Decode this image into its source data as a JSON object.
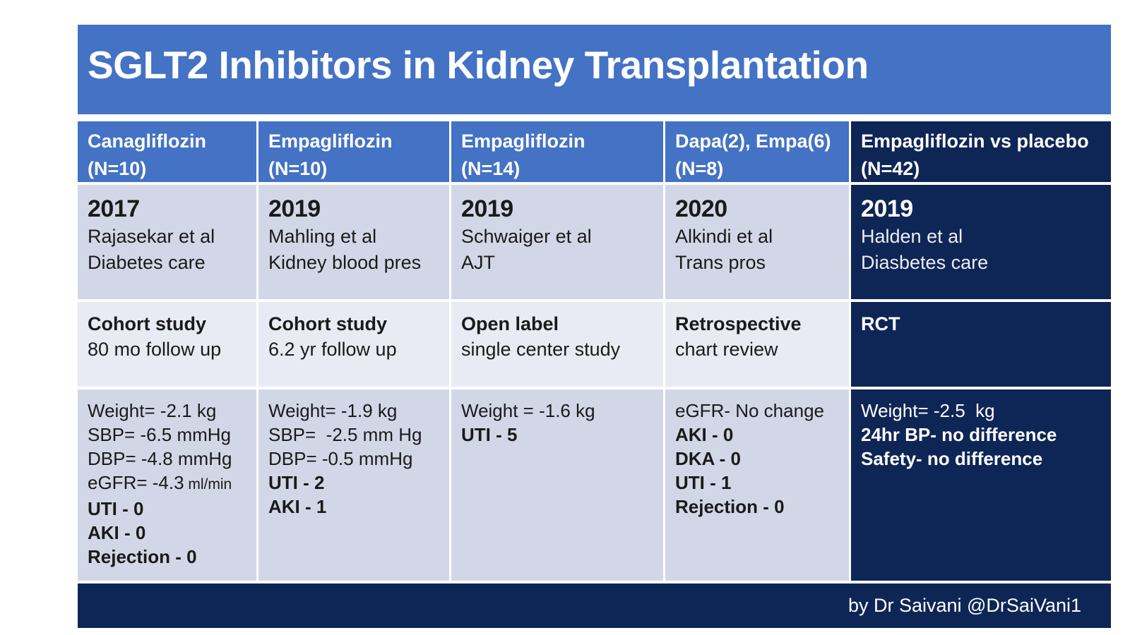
{
  "slide": {
    "title": "SGLT2 Inhibitors in Kidney Transplantation"
  },
  "footer": {
    "credit": "by Dr Saivani @DrSaiVani1"
  },
  "colors": {
    "accent": "#4472C4",
    "navy": "#0E2656",
    "row_light": "#D2D7E8",
    "row_lighter": "#E9EBF4"
  },
  "table": {
    "columns": [
      {
        "id": "canagliflozin-n10",
        "header": {
          "drug": "Canagliflozin",
          "n": "(N=10)"
        },
        "study": {
          "year": "2017",
          "author": "Rajasekar et al",
          "journal": "Diabetes care"
        },
        "design": {
          "type": "Cohort study",
          "detail": "80 mo follow up"
        },
        "results": [
          {
            "text": "Weight= -2.1 kg"
          },
          {
            "text": "SBP= -6.5 mmHg"
          },
          {
            "text": "DBP= -4.8 mmHg"
          },
          {
            "text": "eGFR= -4.3",
            "unit": "ml/min"
          },
          {
            "text": "UTI - 0",
            "bold": true
          },
          {
            "text": "AKI - 0",
            "bold": true
          },
          {
            "text": "Rejection - 0",
            "bold": true
          }
        ]
      },
      {
        "id": "empagliflozin-n10",
        "header": {
          "drug": "Empagliflozin",
          "n": "(N=10)"
        },
        "study": {
          "year": "2019",
          "author": "Mahling et al",
          "journal": "Kidney blood pres"
        },
        "design": {
          "type": "Cohort study",
          "detail": "6.2 yr follow up"
        },
        "results": [
          {
            "text": "Weight= -1.9 kg"
          },
          {
            "text": "SBP=  -2.5 mm Hg"
          },
          {
            "text": "DBP= -0.5 mmHg"
          },
          {
            "text": "UTI - 2",
            "bold": true
          },
          {
            "text": "AKI - 1",
            "bold": true
          }
        ]
      },
      {
        "id": "empagliflozin-n14",
        "header": {
          "drug": "Empagliflozin",
          "n": "(N=14)"
        },
        "study": {
          "year": "2019",
          "author": "Schwaiger et al",
          "journal": "AJT"
        },
        "design": {
          "type": "Open label",
          "detail": "single center study"
        },
        "results": [
          {
            "text": "Weight = -1.6 kg"
          },
          {
            "text": "UTI - 5",
            "bold": true
          }
        ]
      },
      {
        "id": "dapa-empa-n8",
        "header": {
          "drug": "Dapa(2), Empa(6)",
          "n": "(N=8)"
        },
        "study": {
          "year": "2020",
          "author": "Alkindi et al",
          "journal": "Trans pros"
        },
        "design": {
          "type": "Retrospective",
          "detail": "chart review"
        },
        "results": [
          {
            "text": "eGFR- No change"
          },
          {
            "text": "AKI - 0",
            "bold": true
          },
          {
            "text": "DKA - 0",
            "bold": true
          },
          {
            "text": "UTI - 1",
            "bold": true
          },
          {
            "text": "Rejection - 0",
            "bold": true
          }
        ]
      },
      {
        "id": "empagliflozin-vs-placebo-n42",
        "header": {
          "drug": "Empagliflozin vs placebo",
          "n": "(N=42)"
        },
        "study": {
          "year": "2019",
          "author": "Halden et al",
          "journal": "Diasbetes care"
        },
        "design": {
          "type": "RCT",
          "detail": ""
        },
        "results": [
          {
            "text": "Weight= -2.5  kg"
          },
          {
            "text": "24hr BP- no difference",
            "bold": true
          },
          {
            "text": "Safety- no difference",
            "bold": true
          }
        ]
      }
    ]
  }
}
